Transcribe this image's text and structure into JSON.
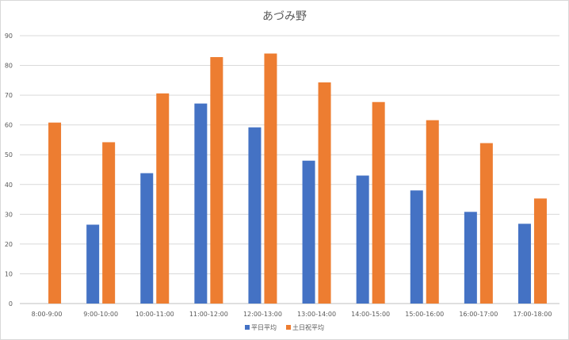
{
  "chart_data": {
    "type": "bar",
    "title": "あづみ野",
    "xlabel": "",
    "ylabel": "",
    "categories": [
      "8:00-9:00",
      "9:00-10:00",
      "10:00-11:00",
      "11:00-12:00",
      "12:00-13:00",
      "13:00-14:00",
      "14:00-15:00",
      "15:00-16:00",
      "16:00-17:00",
      "17:00-18:00"
    ],
    "series": [
      {
        "name": "平日平均",
        "color": "#4472c4",
        "values": [
          null,
          26.5,
          43.8,
          67.2,
          59.2,
          48.0,
          43.0,
          38.0,
          30.8,
          26.8
        ]
      },
      {
        "name": "土日祝平均",
        "color": "#ed7d31",
        "values": [
          60.8,
          54.2,
          70.6,
          82.8,
          84.0,
          74.3,
          67.7,
          61.6,
          53.9,
          35.3
        ]
      }
    ],
    "ylim": [
      0,
      90
    ],
    "yticks": [
      0,
      10,
      20,
      30,
      40,
      50,
      60,
      70,
      80,
      90
    ],
    "grid": true,
    "legend": "bottom-center"
  }
}
